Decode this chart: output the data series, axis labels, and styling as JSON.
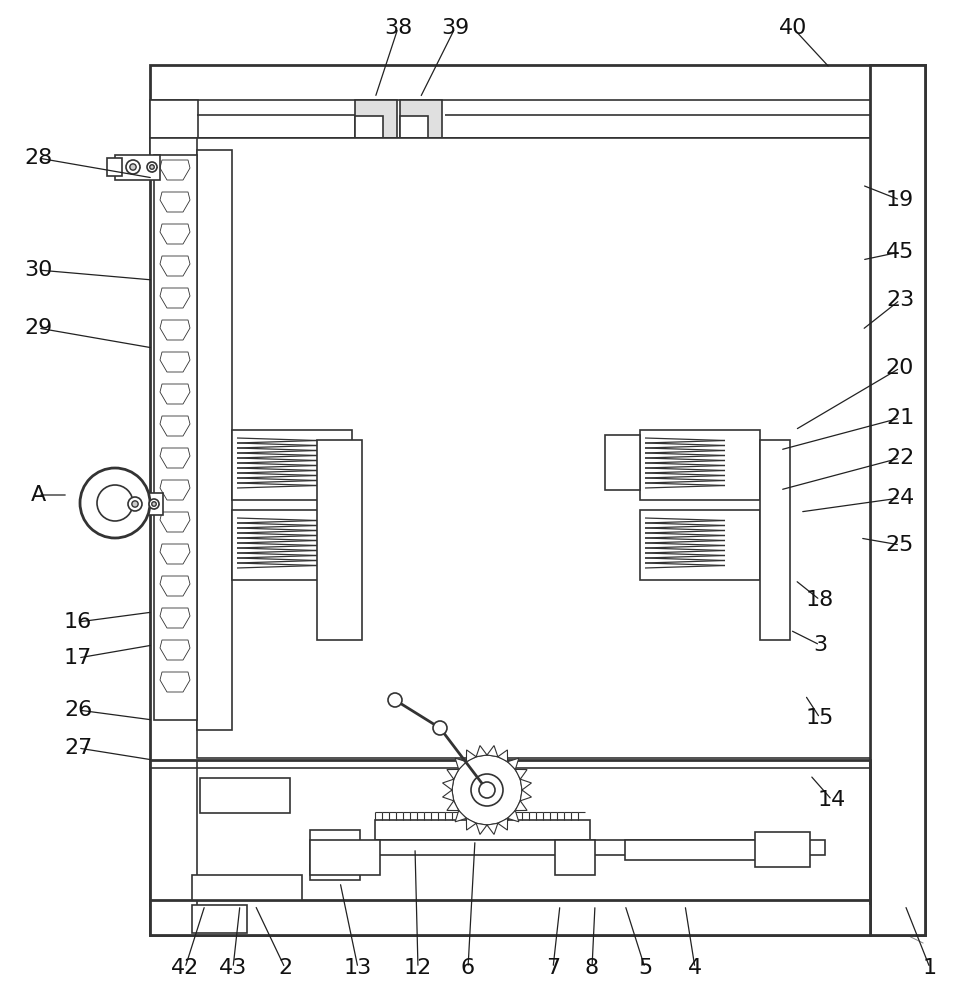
{
  "bg_color": "#ffffff",
  "line_color": "#333333",
  "lw_main": 1.2,
  "lw_thick": 2.0,
  "label_fontsize": 16,
  "labels_config": [
    [
      "1",
      930,
      968,
      905,
      905
    ],
    [
      "2",
      285,
      968,
      255,
      905
    ],
    [
      "3",
      820,
      645,
      790,
      630
    ],
    [
      "4",
      695,
      968,
      685,
      905
    ],
    [
      "5",
      645,
      968,
      625,
      905
    ],
    [
      "6",
      468,
      968,
      475,
      840
    ],
    [
      "7",
      553,
      968,
      560,
      905
    ],
    [
      "8",
      592,
      968,
      595,
      905
    ],
    [
      "12",
      418,
      968,
      415,
      848
    ],
    [
      "13",
      358,
      968,
      340,
      882
    ],
    [
      "14",
      832,
      800,
      810,
      775
    ],
    [
      "15",
      820,
      718,
      805,
      695
    ],
    [
      "16",
      78,
      622,
      153,
      612
    ],
    [
      "17",
      78,
      658,
      153,
      645
    ],
    [
      "18",
      820,
      600,
      795,
      580
    ],
    [
      "19",
      900,
      200,
      862,
      185
    ],
    [
      "20",
      900,
      368,
      795,
      430
    ],
    [
      "21",
      900,
      418,
      780,
      450
    ],
    [
      "22",
      900,
      458,
      780,
      490
    ],
    [
      "23",
      900,
      300,
      862,
      330
    ],
    [
      "24",
      900,
      498,
      800,
      512
    ],
    [
      "25",
      900,
      545,
      860,
      538
    ],
    [
      "26",
      78,
      710,
      153,
      720
    ],
    [
      "27",
      78,
      748,
      153,
      760
    ],
    [
      "28",
      38,
      158,
      153,
      178
    ],
    [
      "29",
      38,
      328,
      153,
      348
    ],
    [
      "30",
      38,
      270,
      153,
      280
    ],
    [
      "38",
      398,
      28,
      375,
      98
    ],
    [
      "39",
      455,
      28,
      420,
      98
    ],
    [
      "40",
      793,
      28,
      830,
      68
    ],
    [
      "42",
      185,
      968,
      205,
      905
    ],
    [
      "43",
      233,
      968,
      240,
      905
    ],
    [
      "45",
      900,
      252,
      862,
      260
    ],
    [
      "A",
      38,
      495,
      68,
      495
    ]
  ]
}
